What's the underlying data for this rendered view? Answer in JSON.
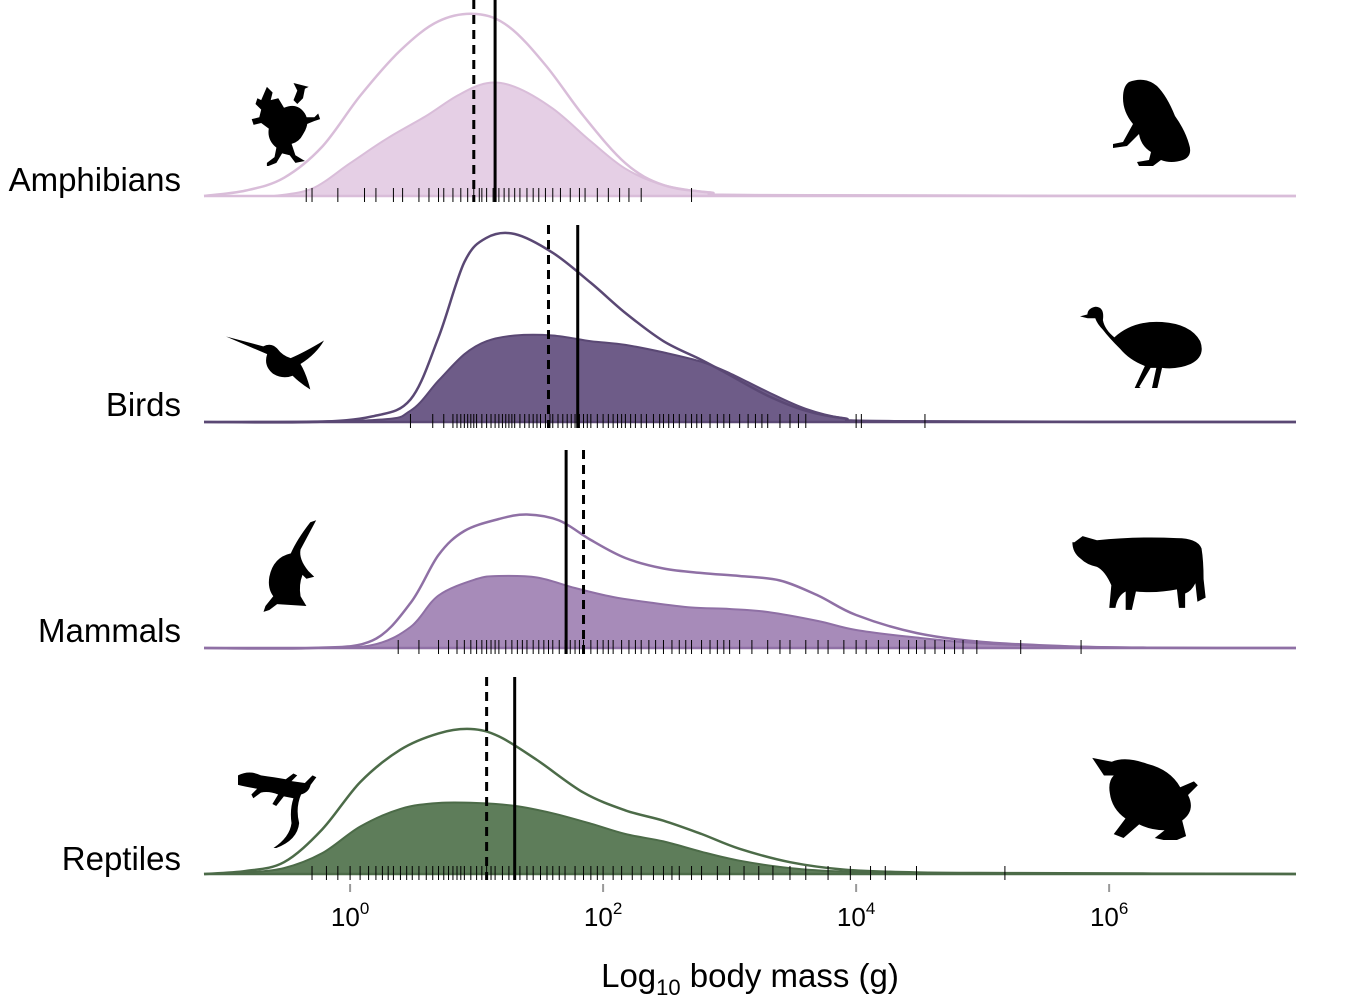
{
  "chart_data": {
    "type": "ridgeline-density",
    "xlabel": {
      "prefix": "Log",
      "sub": "10",
      "rest": " body mass (g)"
    },
    "x_scale": "log10",
    "xlim": [
      0.07,
      30000000
    ],
    "x_ticks": [
      {
        "value": 1,
        "base": "10",
        "exp": "0"
      },
      {
        "value": 100,
        "base": "10",
        "exp": "2"
      },
      {
        "value": 10000,
        "base": "10",
        "exp": "4"
      },
      {
        "value": 1000000,
        "base": "10",
        "exp": "6"
      }
    ],
    "lines": {
      "solid": "mean",
      "dashed": "median"
    },
    "groups": [
      {
        "name": "Amphibians",
        "color": "#e5cfe5",
        "line_color": "#d9bdd9",
        "icon_left": "frog-icon",
        "icon_right": "toad-icon",
        "solid_x": 14,
        "dashed_x": 9.5,
        "outline_density": [
          [
            0.07,
            0.0
          ],
          [
            0.15,
            0.03
          ],
          [
            0.3,
            0.1
          ],
          [
            0.6,
            0.27
          ],
          [
            1.2,
            0.55
          ],
          [
            2.5,
            0.8
          ],
          [
            5,
            0.96
          ],
          [
            10,
            1.0
          ],
          [
            18,
            0.93
          ],
          [
            35,
            0.72
          ],
          [
            70,
            0.44
          ],
          [
            150,
            0.18
          ],
          [
            300,
            0.06
          ],
          [
            700,
            0.02
          ],
          [
            2000,
            0.004
          ],
          [
            30000000,
            0.0
          ]
        ],
        "filled_density": [
          [
            0.25,
            0.0
          ],
          [
            0.5,
            0.04
          ],
          [
            1,
            0.18
          ],
          [
            2,
            0.32
          ],
          [
            4,
            0.44
          ],
          [
            7,
            0.55
          ],
          [
            12,
            0.62
          ],
          [
            20,
            0.6
          ],
          [
            40,
            0.48
          ],
          [
            80,
            0.3
          ],
          [
            150,
            0.15
          ],
          [
            300,
            0.06
          ],
          [
            700,
            0.02
          ],
          [
            2000,
            0.006
          ],
          [
            30000000,
            0.0
          ]
        ],
        "rug": [
          0.45,
          0.5,
          0.8,
          1.3,
          1.6,
          2.2,
          2.6,
          3.5,
          4.2,
          5,
          5.5,
          6.5,
          7.5,
          8.5,
          9.5,
          10.5,
          11,
          12,
          13.5,
          15,
          16.5,
          18,
          20,
          22,
          25,
          28,
          31,
          35,
          40,
          46,
          55,
          65,
          72,
          90,
          110,
          135,
          160,
          200,
          500
        ]
      },
      {
        "name": "Birds",
        "color": "#6e5c88",
        "line_color": "#5a4874",
        "icon_left": "hummingbird-icon",
        "icon_right": "emu-icon",
        "solid_x": 63,
        "dashed_x": 37,
        "outline_density": [
          [
            0.07,
            0.0
          ],
          [
            0.5,
            0.0
          ],
          [
            1.5,
            0.03
          ],
          [
            3,
            0.12
          ],
          [
            5,
            0.45
          ],
          [
            8,
            0.85
          ],
          [
            12,
            0.98
          ],
          [
            20,
            1.0
          ],
          [
            40,
            0.9
          ],
          [
            80,
            0.74
          ],
          [
            150,
            0.58
          ],
          [
            300,
            0.43
          ],
          [
            600,
            0.33
          ],
          [
            1000,
            0.25
          ],
          [
            2000,
            0.14
          ],
          [
            4000,
            0.06
          ],
          [
            8000,
            0.02
          ],
          [
            20000,
            0.004
          ],
          [
            30000000,
            0.0
          ]
        ],
        "filled_density": [
          [
            0.07,
            0.0
          ],
          [
            1.5,
            0.01
          ],
          [
            3,
            0.06
          ],
          [
            5,
            0.22
          ],
          [
            8,
            0.36
          ],
          [
            12,
            0.43
          ],
          [
            20,
            0.46
          ],
          [
            40,
            0.46
          ],
          [
            80,
            0.43
          ],
          [
            150,
            0.41
          ],
          [
            300,
            0.37
          ],
          [
            600,
            0.32
          ],
          [
            1000,
            0.26
          ],
          [
            2000,
            0.16
          ],
          [
            4000,
            0.07
          ],
          [
            8000,
            0.02
          ],
          [
            20000,
            0.004
          ],
          [
            30000000,
            0.0
          ]
        ],
        "rug": [
          3,
          4.5,
          5.5,
          6.5,
          7,
          7.5,
          8,
          8.5,
          9,
          9.5,
          10,
          11,
          12,
          13,
          14,
          15,
          16,
          17,
          18,
          19,
          20,
          22,
          24,
          26,
          28,
          30,
          32,
          35,
          38,
          40,
          44,
          48,
          52,
          56,
          60,
          65,
          70,
          75,
          80,
          90,
          100,
          110,
          120,
          130,
          140,
          150,
          165,
          180,
          200,
          220,
          250,
          280,
          300,
          330,
          360,
          400,
          450,
          500,
          550,
          600,
          700,
          800,
          900,
          1000,
          1200,
          1400,
          1600,
          1800,
          2000,
          2500,
          3000,
          3500,
          4000,
          10000,
          11000,
          35000
        ]
      },
      {
        "name": "Mammals",
        "color": "#a78bb9",
        "line_color": "#8f70a5",
        "icon_left": "anteater-icon",
        "icon_right": "cow-icon",
        "solid_x": 51,
        "dashed_x": 70,
        "outline_density": [
          [
            0.07,
            0.0
          ],
          [
            0.5,
            0.0
          ],
          [
            1.5,
            0.05
          ],
          [
            3,
            0.3
          ],
          [
            5,
            0.62
          ],
          [
            8,
            0.78
          ],
          [
            15,
            0.86
          ],
          [
            25,
            0.89
          ],
          [
            45,
            0.85
          ],
          [
            80,
            0.72
          ],
          [
            150,
            0.6
          ],
          [
            300,
            0.53
          ],
          [
            600,
            0.5
          ],
          [
            1200,
            0.48
          ],
          [
            2500,
            0.45
          ],
          [
            5000,
            0.35
          ],
          [
            10000,
            0.22
          ],
          [
            30000,
            0.1
          ],
          [
            100000,
            0.04
          ],
          [
            500000,
            0.01
          ],
          [
            2000000,
            0.002
          ],
          [
            30000000,
            0.0
          ]
        ],
        "filled_density": [
          [
            0.07,
            0.0
          ],
          [
            0.5,
            0.0
          ],
          [
            1.5,
            0.02
          ],
          [
            3,
            0.14
          ],
          [
            5,
            0.35
          ],
          [
            10,
            0.46
          ],
          [
            15,
            0.48
          ],
          [
            30,
            0.47
          ],
          [
            60,
            0.4
          ],
          [
            120,
            0.34
          ],
          [
            250,
            0.3
          ],
          [
            500,
            0.27
          ],
          [
            1000,
            0.26
          ],
          [
            2000,
            0.24
          ],
          [
            5000,
            0.18
          ],
          [
            10000,
            0.12
          ],
          [
            30000,
            0.07
          ],
          [
            100000,
            0.03
          ],
          [
            500000,
            0.01
          ],
          [
            2000000,
            0.002
          ],
          [
            30000000,
            0.0
          ]
        ],
        "rug": [
          2.4,
          3.5,
          5,
          6,
          7,
          8,
          9,
          10,
          11,
          12,
          13,
          14,
          15,
          17,
          19,
          21,
          23,
          25,
          28,
          31,
          34,
          37,
          40,
          45,
          50,
          55,
          60,
          65,
          70,
          80,
          90,
          100,
          110,
          120,
          140,
          160,
          180,
          200,
          230,
          260,
          300,
          350,
          400,
          450,
          500,
          600,
          700,
          800,
          900,
          1000,
          1200,
          1500,
          2000,
          2500,
          3000,
          4000,
          5000,
          6000,
          8000,
          10000,
          12000,
          15000,
          18000,
          22000,
          26000,
          30000,
          35000,
          42000,
          50000,
          60000,
          70000,
          90000,
          200000,
          600000
        ]
      },
      {
        "name": "Reptiles",
        "color": "#5e7d5a",
        "line_color": "#4c6b48",
        "icon_left": "lizard-icon",
        "icon_right": "sea-turtle-icon",
        "solid_x": 20,
        "dashed_x": 12,
        "outline_density": [
          [
            0.07,
            0.0
          ],
          [
            0.15,
            0.02
          ],
          [
            0.3,
            0.08
          ],
          [
            0.6,
            0.3
          ],
          [
            1.2,
            0.62
          ],
          [
            2.5,
            0.84
          ],
          [
            5,
            0.95
          ],
          [
            9,
            0.98
          ],
          [
            15,
            0.93
          ],
          [
            30,
            0.77
          ],
          [
            70,
            0.55
          ],
          [
            150,
            0.43
          ],
          [
            300,
            0.36
          ],
          [
            600,
            0.27
          ],
          [
            1200,
            0.17
          ],
          [
            3000,
            0.08
          ],
          [
            8000,
            0.03
          ],
          [
            30000,
            0.01
          ],
          [
            200000,
            0.006
          ],
          [
            30000000,
            0.0
          ]
        ],
        "filled_density": [
          [
            0.07,
            0.0
          ],
          [
            0.15,
            0.01
          ],
          [
            0.3,
            0.04
          ],
          [
            0.6,
            0.14
          ],
          [
            1.2,
            0.32
          ],
          [
            2.5,
            0.44
          ],
          [
            5,
            0.48
          ],
          [
            10,
            0.48
          ],
          [
            20,
            0.46
          ],
          [
            40,
            0.41
          ],
          [
            80,
            0.34
          ],
          [
            150,
            0.27
          ],
          [
            300,
            0.22
          ],
          [
            600,
            0.15
          ],
          [
            1200,
            0.09
          ],
          [
            3000,
            0.04
          ],
          [
            8000,
            0.016
          ],
          [
            30000,
            0.006
          ],
          [
            200000,
            0.004
          ],
          [
            30000000,
            0.0
          ]
        ],
        "rug": [
          0.5,
          0.65,
          0.8,
          1,
          1.2,
          1.4,
          1.6,
          1.8,
          2,
          2.2,
          2.5,
          2.8,
          3.1,
          3.5,
          4,
          4.5,
          5,
          5.5,
          6,
          6.5,
          7,
          7.5,
          8,
          9,
          10,
          11,
          12,
          13,
          14,
          16,
          18,
          20,
          22,
          25,
          28,
          32,
          36,
          40,
          45,
          50,
          60,
          70,
          80,
          90,
          100,
          120,
          140,
          170,
          200,
          250,
          300,
          350,
          400,
          500,
          600,
          800,
          1000,
          1300,
          1700,
          2200,
          3000,
          4000,
          6000,
          9000,
          13000,
          17000,
          30000,
          150000
        ]
      }
    ]
  }
}
